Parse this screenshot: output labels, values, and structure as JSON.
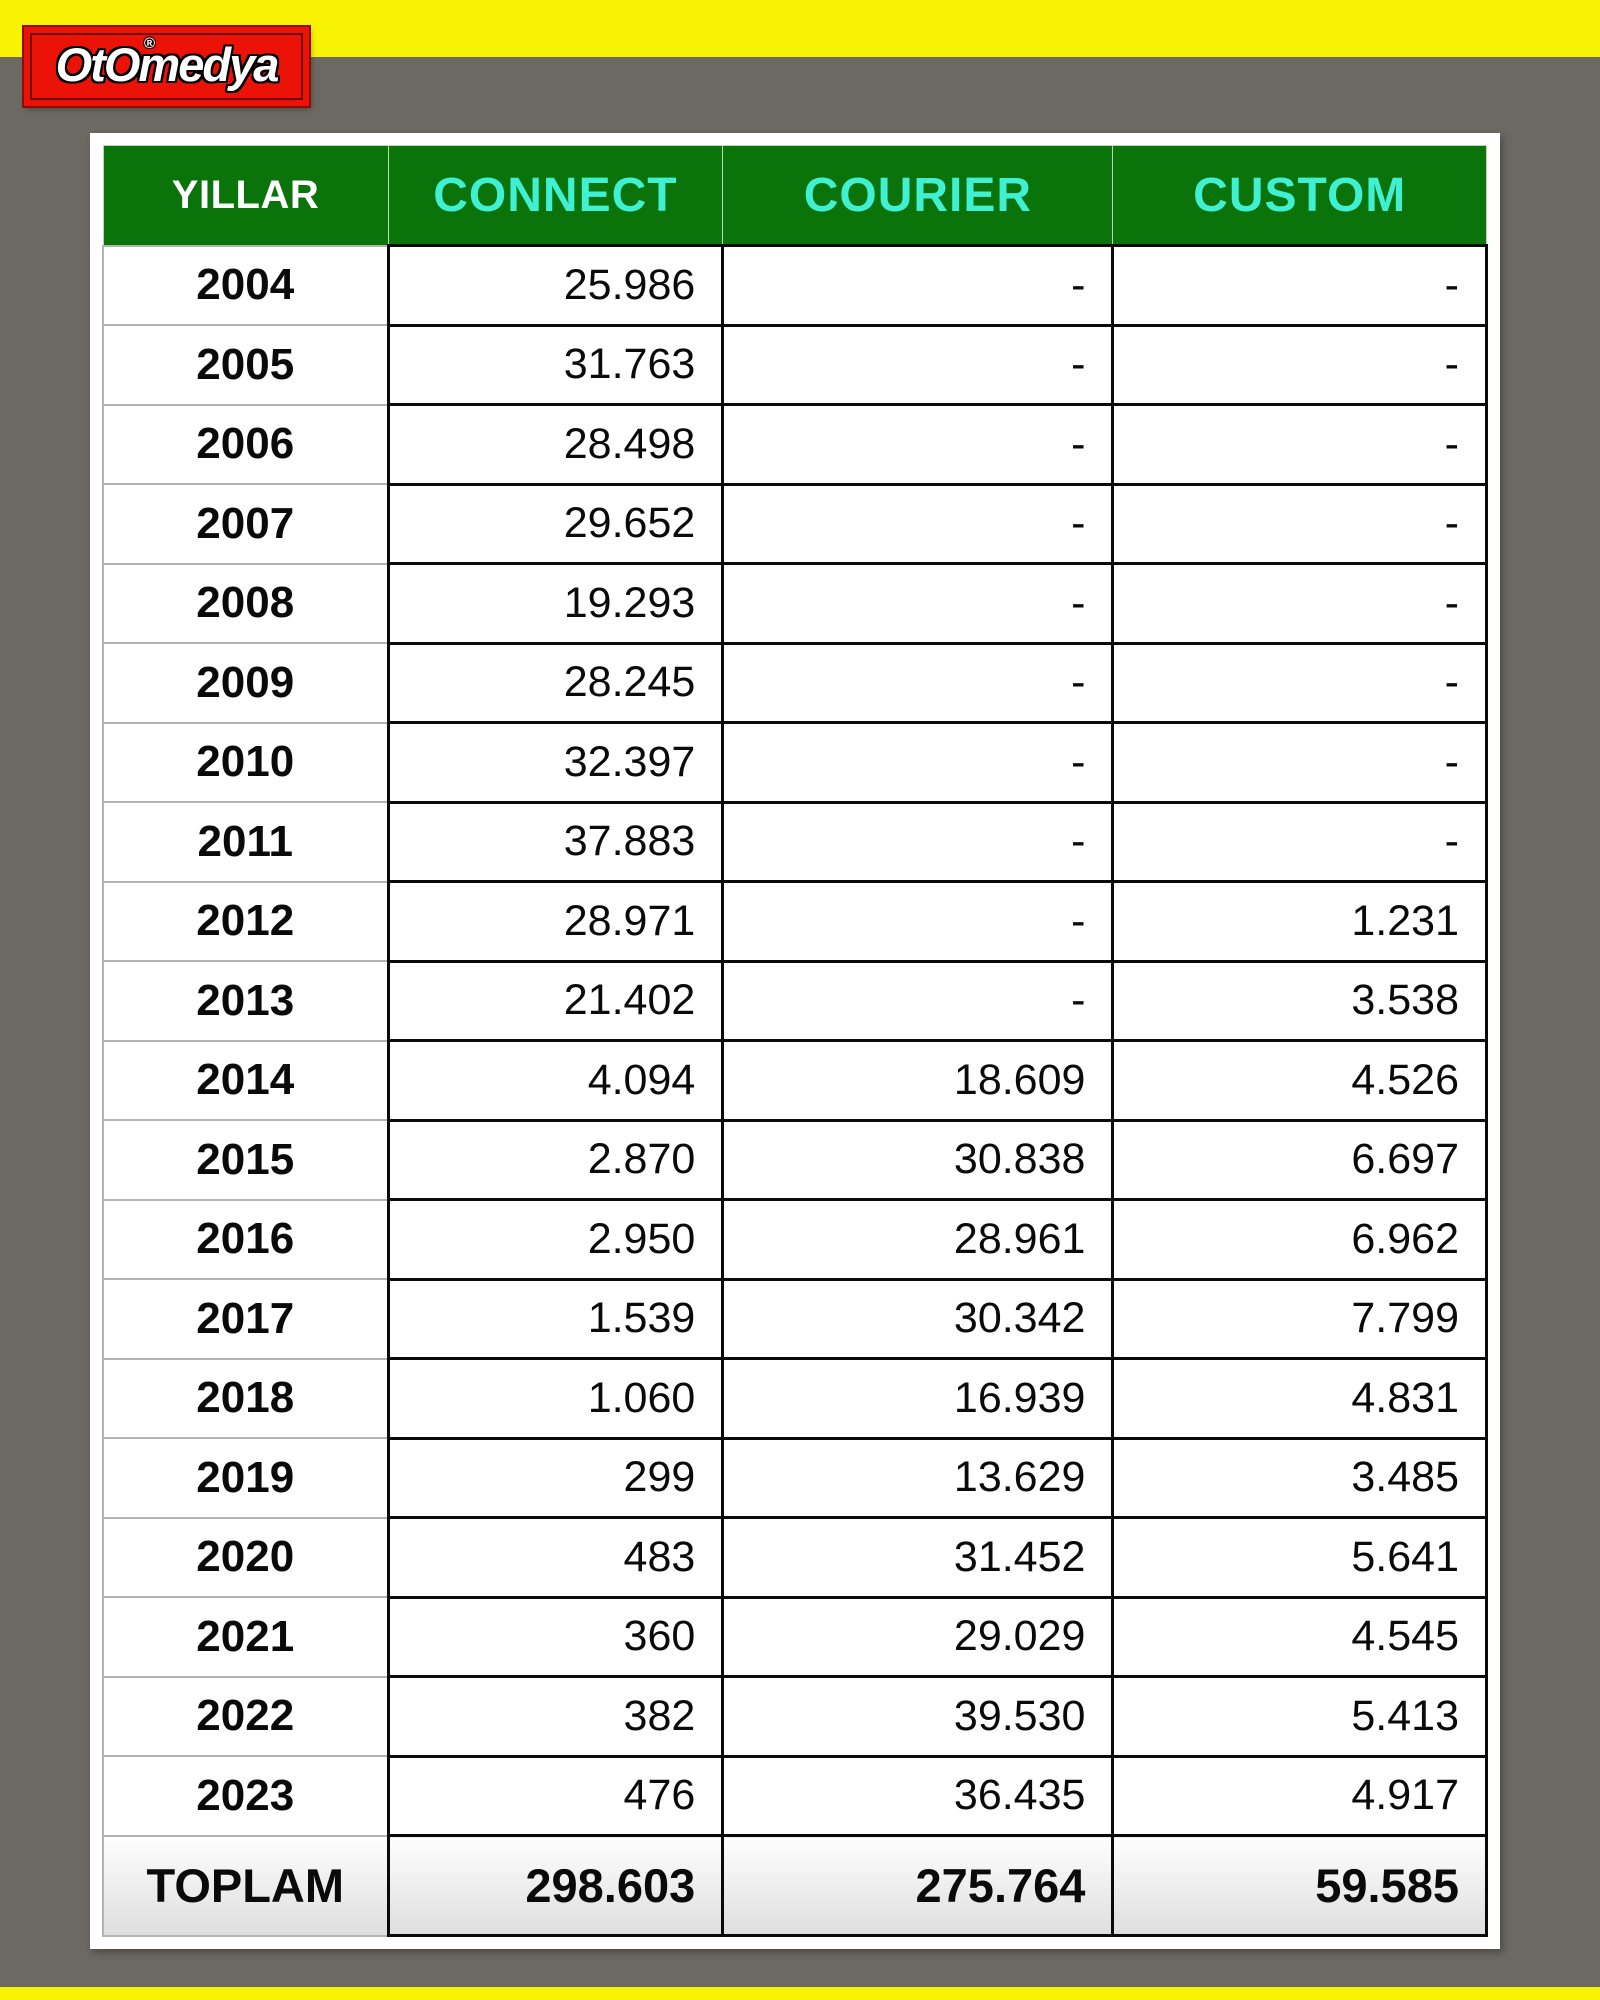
{
  "colors": {
    "page_background": "#6C6862",
    "accent_strip": "#F8F303",
    "logo_red": "#EB1207",
    "header_green": "#0A730A",
    "header_cyan": "#3FF0D3",
    "header_white": "#FFFFFF",
    "text_black": "#0A0A0A"
  },
  "logo": {
    "text": "OtOmedya",
    "registered_mark": "®"
  },
  "table": {
    "header": {
      "year_col": "YILLAR",
      "columns": [
        "CONNECT",
        "COURIER",
        "CUSTOM"
      ]
    },
    "rows": [
      {
        "year": "2004",
        "connect": "25.986",
        "courier": "-",
        "custom": "-"
      },
      {
        "year": "2005",
        "connect": "31.763",
        "courier": "-",
        "custom": "-"
      },
      {
        "year": "2006",
        "connect": "28.498",
        "courier": "-",
        "custom": "-"
      },
      {
        "year": "2007",
        "connect": "29.652",
        "courier": "-",
        "custom": "-"
      },
      {
        "year": "2008",
        "connect": "19.293",
        "courier": "-",
        "custom": "-"
      },
      {
        "year": "2009",
        "connect": "28.245",
        "courier": "-",
        "custom": "-"
      },
      {
        "year": "2010",
        "connect": "32.397",
        "courier": "-",
        "custom": "-"
      },
      {
        "year": "2011",
        "connect": "37.883",
        "courier": "-",
        "custom": "-"
      },
      {
        "year": "2012",
        "connect": "28.971",
        "courier": "-",
        "custom": "1.231"
      },
      {
        "year": "2013",
        "connect": "21.402",
        "courier": "-",
        "custom": "3.538"
      },
      {
        "year": "2014",
        "connect": "4.094",
        "courier": "18.609",
        "custom": "4.526"
      },
      {
        "year": "2015",
        "connect": "2.870",
        "courier": "30.838",
        "custom": "6.697"
      },
      {
        "year": "2016",
        "connect": "2.950",
        "courier": "28.961",
        "custom": "6.962"
      },
      {
        "year": "2017",
        "connect": "1.539",
        "courier": "30.342",
        "custom": "7.799"
      },
      {
        "year": "2018",
        "connect": "1.060",
        "courier": "16.939",
        "custom": "4.831"
      },
      {
        "year": "2019",
        "connect": "299",
        "courier": "13.629",
        "custom": "3.485"
      },
      {
        "year": "2020",
        "connect": "483",
        "courier": "31.452",
        "custom": "5.641"
      },
      {
        "year": "2021",
        "connect": "360",
        "courier": "29.029",
        "custom": "4.545"
      },
      {
        "year": "2022",
        "connect": "382",
        "courier": "39.530",
        "custom": "5.413"
      },
      {
        "year": "2023",
        "connect": "476",
        "courier": "36.435",
        "custom": "4.917"
      }
    ],
    "total": {
      "label": "TOPLAM",
      "connect": "298.603",
      "courier": "275.764",
      "custom": "59.585"
    }
  },
  "chart_data": {
    "type": "table",
    "row_label_header": "YILLAR",
    "total_label": "TOPLAM",
    "categories": [
      "2004",
      "2005",
      "2006",
      "2007",
      "2008",
      "2009",
      "2010",
      "2011",
      "2012",
      "2013",
      "2014",
      "2015",
      "2016",
      "2017",
      "2018",
      "2019",
      "2020",
      "2021",
      "2022",
      "2023"
    ],
    "series": [
      {
        "name": "CONNECT",
        "values": [
          25986,
          31763,
          28498,
          29652,
          19293,
          28245,
          32397,
          37883,
          28971,
          21402,
          4094,
          2870,
          2950,
          1539,
          1060,
          299,
          483,
          360,
          382,
          476
        ],
        "total": 298603
      },
      {
        "name": "COURIER",
        "values": [
          null,
          null,
          null,
          null,
          null,
          null,
          null,
          null,
          null,
          null,
          18609,
          30838,
          28961,
          30342,
          16939,
          13629,
          31452,
          29029,
          39530,
          36435
        ],
        "total": 275764
      },
      {
        "name": "CUSTOM",
        "values": [
          null,
          null,
          null,
          null,
          null,
          null,
          null,
          null,
          1231,
          3538,
          4526,
          6697,
          6962,
          7799,
          4831,
          3485,
          5641,
          4545,
          5413,
          4917
        ],
        "total": 59585
      }
    ]
  }
}
